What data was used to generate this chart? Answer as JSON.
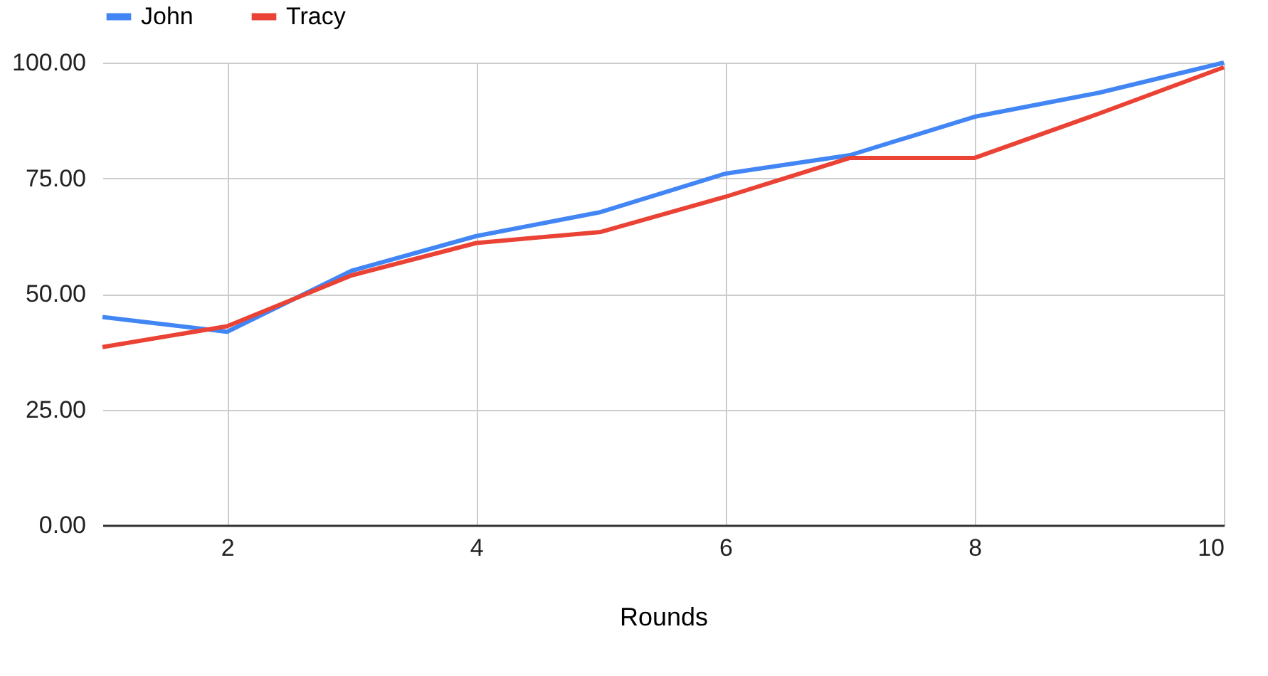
{
  "chart_data": {
    "type": "line",
    "xlabel": "Rounds",
    "x": [
      1,
      2,
      3,
      4,
      5,
      6,
      7,
      8,
      9,
      10
    ],
    "series": [
      {
        "name": "John",
        "color": "#4285f4",
        "values": [
          45,
          41.8,
          55,
          62.5,
          67.7,
          76,
          80,
          88.3,
          93.5,
          100
        ]
      },
      {
        "name": "Tracy",
        "color": "#ea4335",
        "values": [
          38.5,
          43,
          54,
          61,
          63.4,
          71,
          79.4,
          79.4,
          89,
          99
        ]
      }
    ],
    "xlim": [
      1,
      10
    ],
    "xticks": [
      2,
      4,
      6,
      8,
      10
    ],
    "ylim": [
      0,
      100
    ],
    "yticks": [
      {
        "value": 0,
        "label": "0.00"
      },
      {
        "value": 25,
        "label": "25.00"
      },
      {
        "value": 50,
        "label": "50.00"
      },
      {
        "value": 75,
        "label": "75.00"
      },
      {
        "value": 100,
        "label": "100.00"
      }
    ],
    "grid": true,
    "legend": "top"
  }
}
